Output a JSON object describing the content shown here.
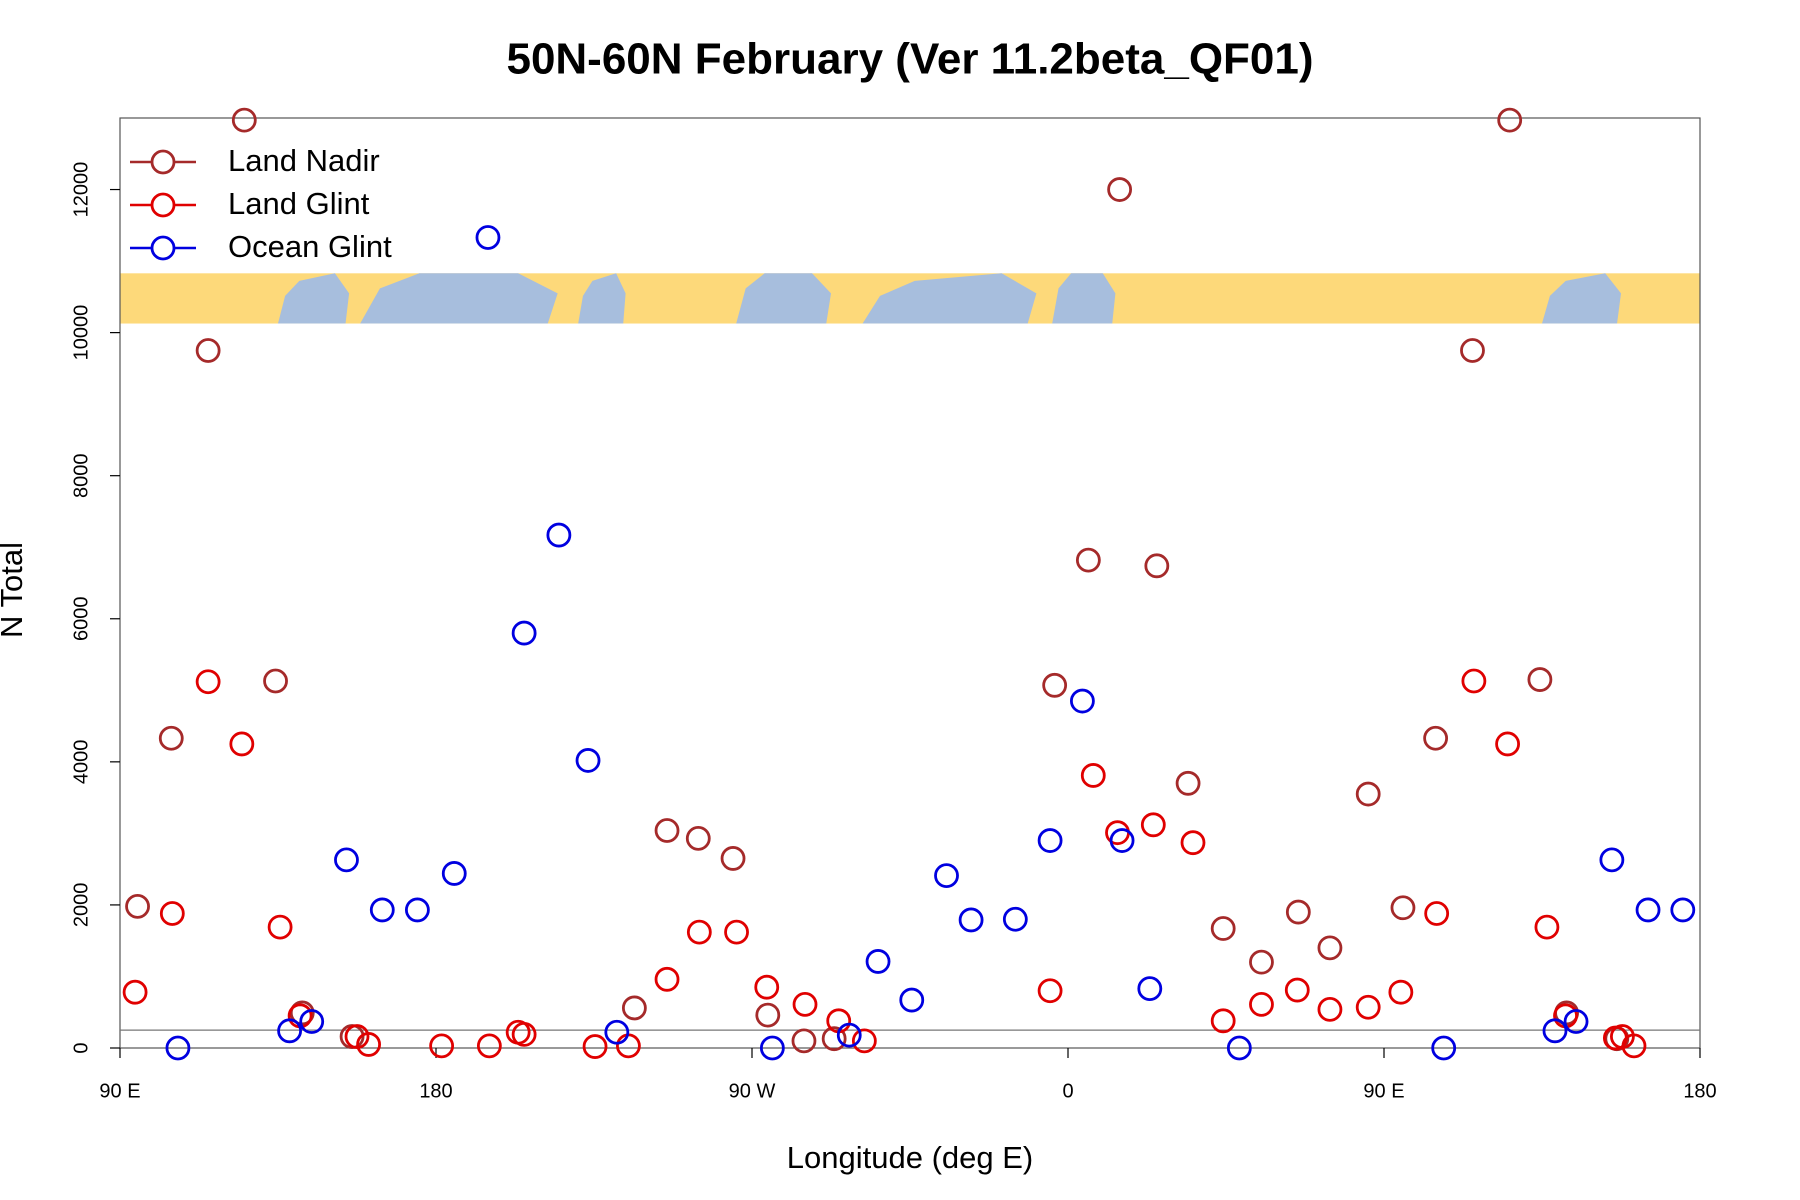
{
  "chart_data": {
    "type": "scatter",
    "title": "50N-60N February (Ver 11.2beta_QF01)",
    "x_label": "Longitude (deg E)",
    "y_label": "N Total",
    "xlim": [
      90,
      540
    ],
    "ylim": [
      0,
      13000
    ],
    "xticks": [
      {
        "value": 90,
        "label": "90 E"
      },
      180,
      {
        "value": 270,
        "label": "90 W"
      },
      {
        "value": 360,
        "label": "0"
      },
      {
        "value": 450,
        "label": "90 E"
      },
      {
        "value": 540,
        "label": "180"
      }
    ],
    "yticks": [
      0,
      2000,
      4000,
      6000,
      8000,
      10000,
      12000
    ],
    "hline": 250,
    "legend": "top-left",
    "series": [
      {
        "name": "Land Nadir",
        "color": "#a52a2a",
        "x": [
          125.4,
          95,
          104.6,
          115.1,
          134.3,
          141.9,
          156.1,
          236.5,
          245.8,
          254.7,
          264.6,
          274.5,
          284.8,
          293.4,
          356.2,
          365.8,
          374.7,
          385.3,
          394.2,
          404.2,
          415.1,
          425.6,
          434.6,
          445.5,
          455.4,
          464.7,
          475.2,
          485.8,
          494.4,
          502.0,
          516.3
        ],
        "values": [
          12970,
          1980,
          4330,
          9750,
          5130,
          490,
          160,
          560,
          3040,
          2930,
          2650,
          460,
          100,
          130,
          5070,
          6820,
          12000,
          6740,
          3700,
          1670,
          1200,
          1900,
          1400,
          3550,
          1960,
          4330,
          9750,
          12970,
          5150,
          490,
          130
        ]
      },
      {
        "name": "Land Glint",
        "color": "#e00000",
        "x": [
          94.3,
          104.9,
          115.1,
          124.7,
          135.6,
          141.3,
          157.5,
          160.8,
          181.6,
          195.2,
          203.4,
          205.1,
          225.3,
          234.8,
          245.8,
          255.0,
          265.6,
          274.2,
          285.1,
          294.7,
          302.0,
          354.9,
          367.2,
          374.1,
          384.3,
          395.6,
          404.2,
          415.1,
          425.3,
          434.6,
          445.5,
          454.8,
          465.0,
          475.6,
          485.2,
          496.4,
          501.7,
          515.9,
          517.9,
          521.2
        ],
        "values": [
          780,
          1880,
          5120,
          4250,
          1690,
          450,
          160,
          50,
          30,
          30,
          220,
          190,
          20,
          30,
          960,
          1620,
          1620,
          850,
          610,
          380,
          100,
          800,
          3810,
          3010,
          3120,
          2870,
          380,
          610,
          810,
          540,
          570,
          780,
          1880,
          5130,
          4250,
          1690,
          450,
          140,
          160,
          30
        ]
      },
      {
        "name": "Ocean Glint",
        "color": "#0000e0",
        "x": [
          106.5,
          138.3,
          144.6,
          154.5,
          164.7,
          174.7,
          185.2,
          194.8,
          205.1,
          215.0,
          223.3,
          231.5,
          275.8,
          297.7,
          305.9,
          315.5,
          325.4,
          332.4,
          345.0,
          354.9,
          364.1,
          375.4,
          383.3,
          408.8,
          467.0,
          498.7,
          504.7,
          514.9,
          525.2,
          535.1
        ],
        "values": [
          0,
          240,
          370,
          2630,
          1930,
          1930,
          2440,
          11330,
          5800,
          7170,
          4020,
          220,
          0,
          180,
          1210,
          670,
          2410,
          1790,
          1800,
          2900,
          4850,
          2900,
          830,
          0,
          0,
          240,
          370,
          2630,
          1930,
          1930
        ]
      }
    ]
  }
}
